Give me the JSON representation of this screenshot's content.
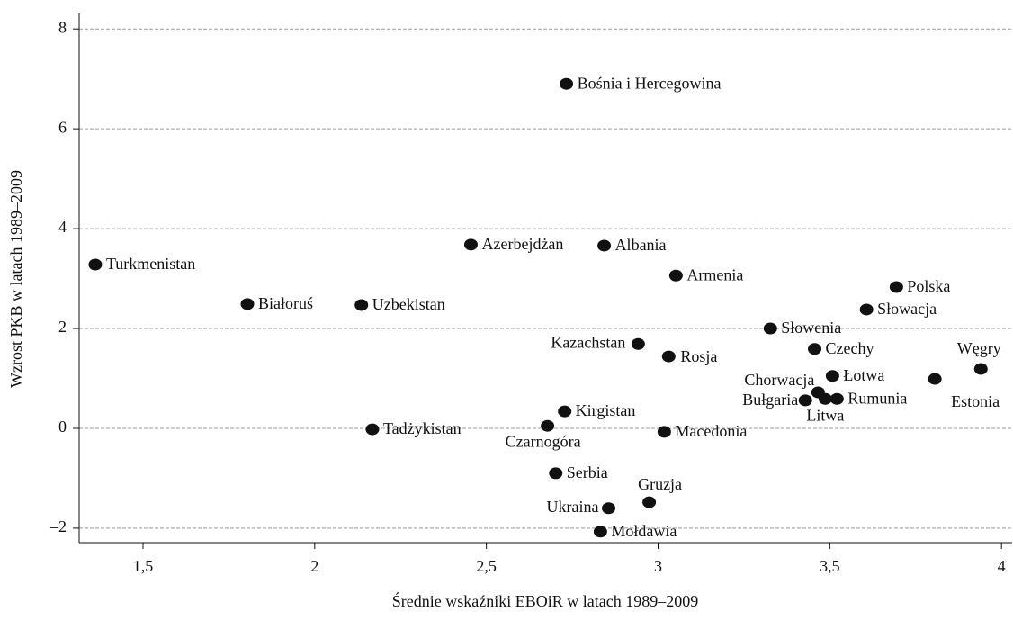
{
  "chart_data": {
    "type": "scatter",
    "x_label": "Średnie wskaźniki EBOiR w latach 1989–2009",
    "y_label": "Wzrost PKB w latach 1989–2009",
    "labels": [
      "Turkmenistan",
      "Białoruś",
      "Uzbekistan",
      "Tadżykistan",
      "Azerbejdżan",
      "Albania",
      "Armenia",
      "Bośnia i Hercegowina",
      "Kazachstan",
      "Rosja",
      "Kirgistan",
      "Czarnogóra",
      "Macedonia",
      "Serbia",
      "Gruzja",
      "Ukraina",
      "Mołdawia",
      "Słowenia",
      "Polska",
      "Słowacja",
      "Czechy",
      "Łotwa",
      "Chorwacja",
      "Bułgaria",
      "Litwa",
      "Rumunia",
      "Estonia",
      "Węgry"
    ],
    "x": [
      1.361,
      1.804,
      2.136,
      2.168,
      2.455,
      2.843,
      3.052,
      2.733,
      2.942,
      3.031,
      2.728,
      2.678,
      3.018,
      2.702,
      2.974,
      2.856,
      2.832,
      3.327,
      3.694,
      3.607,
      3.456,
      3.508,
      3.466,
      3.429,
      3.487,
      3.521,
      3.806,
      3.94
    ],
    "y": [
      3.28,
      2.49,
      2.47,
      -0.02,
      3.68,
      3.66,
      3.06,
      6.9,
      1.69,
      1.44,
      0.34,
      0.05,
      -0.07,
      -0.9,
      -1.48,
      -1.6,
      -2.07,
      2.0,
      2.83,
      2.38,
      1.59,
      1.05,
      0.72,
      0.56,
      0.59,
      0.59,
      0.99,
      1.19
    ],
    "color": "#111111",
    "xlim": [
      1.314,
      4.031
    ],
    "ylim": [
      -2.29,
      8.31
    ],
    "xticks": [
      {
        "value": 1.5,
        "label": "1,5"
      },
      2,
      {
        "value": 2.5,
        "label": "2,5"
      },
      3,
      {
        "value": 3.5,
        "label": "3,5"
      },
      4
    ],
    "yticks": [
      {
        "value": -2,
        "label": "–2"
      },
      0,
      2,
      4,
      6,
      8
    ],
    "grid": true
  }
}
